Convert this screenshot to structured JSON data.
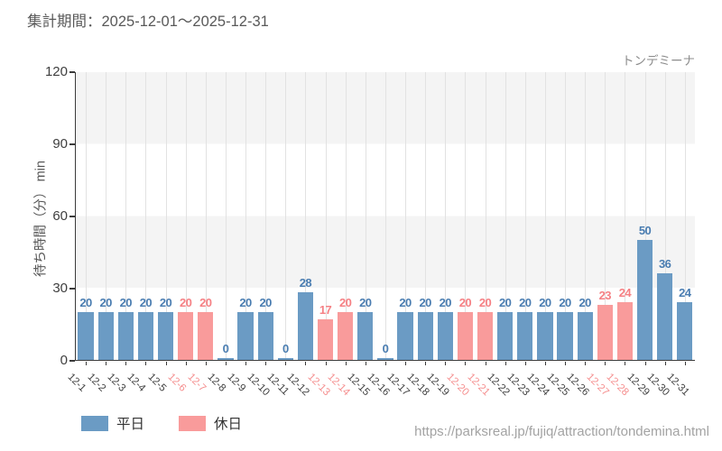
{
  "header": {
    "title": "集計期間：2025-12-01～2025-12-31"
  },
  "chart": {
    "attraction_label": "トンデミーナ",
    "y_axis_title": "待ち時間（分） min",
    "legend": [
      {
        "label": "平日",
        "type": "weekday"
      },
      {
        "label": "休日",
        "type": "holiday"
      }
    ]
  },
  "footer": {
    "url": "https://parksreal.jp/fujiq/attraction/tondemina.html"
  },
  "colors": {
    "weekday_bar": "#6b9bc4",
    "holiday_bar": "#f99b9b",
    "weekday_text": "#4a7db1",
    "holiday_text": "#f58084",
    "weekday_tick_label": "#3f3f3f",
    "holiday_tick_label": "#f58f8f",
    "axis": "#3b3b3b",
    "gridline": "#e2e2e2",
    "band": "#f4f4f4"
  },
  "chart_data": {
    "type": "bar",
    "title": "集計期間：2025-12-01～2025-12-31",
    "xlabel": "",
    "ylabel": "待ち時間（分） min",
    "ylim": [
      0,
      120
    ],
    "yticks": [
      0,
      30,
      60,
      90,
      120
    ],
    "grid": "vertical-category-lines, alternating-horizontal-bands",
    "legend_position": "bottom-left",
    "legend_entries": [
      "平日",
      "休日"
    ],
    "annotation_top_right": "トンデミーナ",
    "categories": [
      "12-1",
      "12-2",
      "12-3",
      "12-4",
      "12-5",
      "12-6",
      "12-7",
      "12-8",
      "12-9",
      "12-10",
      "12-11",
      "12-12",
      "12-13",
      "12-14",
      "12-15",
      "12-16",
      "12-17",
      "12-18",
      "12-19",
      "12-20",
      "12-21",
      "12-22",
      "12-23",
      "12-24",
      "12-25",
      "12-26",
      "12-27",
      "12-28",
      "12-29",
      "12-30",
      "12-31"
    ],
    "values": [
      20,
      20,
      20,
      20,
      20,
      20,
      20,
      0,
      20,
      20,
      0,
      28,
      17,
      20,
      20,
      0,
      20,
      20,
      20,
      20,
      20,
      20,
      20,
      20,
      20,
      20,
      23,
      24,
      50,
      36,
      24
    ],
    "day_type": [
      "weekday",
      "weekday",
      "weekday",
      "weekday",
      "weekday",
      "holiday",
      "holiday",
      "weekday",
      "weekday",
      "weekday",
      "weekday",
      "weekday",
      "holiday",
      "holiday",
      "weekday",
      "weekday",
      "weekday",
      "weekday",
      "weekday",
      "holiday",
      "holiday",
      "weekday",
      "weekday",
      "weekday",
      "weekday",
      "weekday",
      "holiday",
      "holiday",
      "weekday",
      "weekday",
      "weekday"
    ]
  }
}
